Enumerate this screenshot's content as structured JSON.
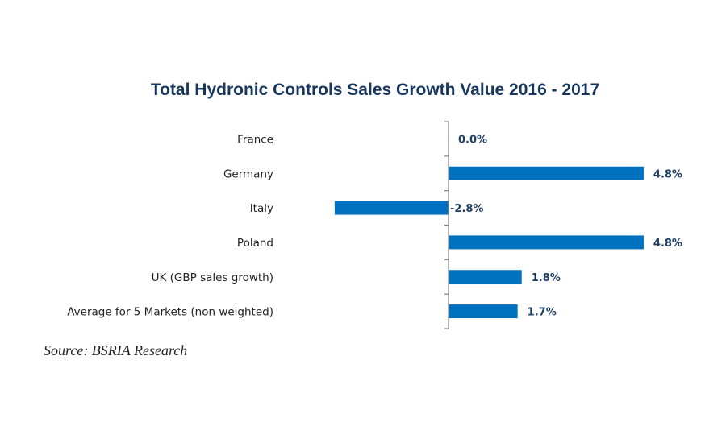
{
  "chart_data": {
    "type": "bar",
    "orientation": "horizontal",
    "title": "Total Hydronic Controls Sales Growth Value 2016 - 2017",
    "categories": [
      "France",
      "Germany",
      "Italy",
      "Poland",
      "UK (GBP sales growth)",
      "Average for 5 Markets (non weighted)"
    ],
    "values": [
      0.0,
      4.8,
      -2.8,
      4.8,
      1.8,
      1.7
    ],
    "value_labels": [
      "0.0%",
      "4.8%",
      "-2.8%",
      "4.8%",
      "1.8%",
      "1.7%"
    ],
    "unit": "%",
    "xlabel": "",
    "ylabel": "",
    "xlim": [
      -2.8,
      4.8
    ],
    "grid": false,
    "legend": "none",
    "bar_color": "#0070c0",
    "label_color": "#1f3f64",
    "title_color": "#17375e"
  },
  "source": "Source: BSRIA Research"
}
